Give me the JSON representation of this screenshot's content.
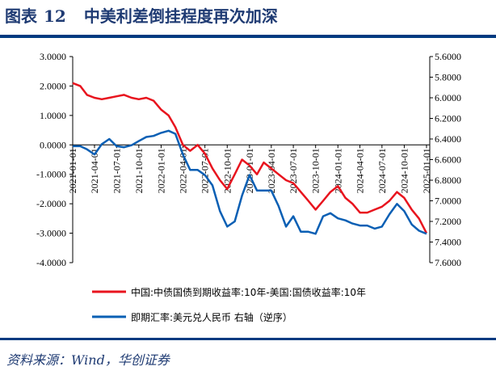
{
  "header": {
    "label": "图表",
    "number": "12",
    "title": "中美利差倒挂程度再次加深"
  },
  "source": "资料来源：Wind，华创证券",
  "chart_data": {
    "type": "line",
    "title": "中美利差倒挂程度再次加深",
    "x_ticks": [
      "2021-01-01",
      "2021-04-01",
      "2021-07-01",
      "2021-10-01",
      "2022-01-01",
      "2022-04-01",
      "2022-07-01",
      "2022-10-01",
      "2023-01-01",
      "2023-04-01",
      "2023-07-01",
      "2023-10-01",
      "2024-01-01",
      "2024-04-01",
      "2024-07-01",
      "2024-10-01",
      "2025-01-01"
    ],
    "y_left": {
      "range": [
        -4,
        3
      ],
      "ticks": [
        "3.0000",
        "2.0000",
        "1.0000",
        "0.0000",
        "-1.0000",
        "-2.0000",
        "-3.0000",
        "-4.0000"
      ]
    },
    "y_right": {
      "range": [
        5.6,
        7.6
      ],
      "reversed": true,
      "ticks": [
        "5.6000",
        "5.8000",
        "6.0000",
        "6.2000",
        "6.4000",
        "6.6000",
        "6.8000",
        "7.0000",
        "7.2000",
        "7.4000",
        "7.6000"
      ]
    },
    "x": [
      "2021-01",
      "2021-02",
      "2021-03",
      "2021-04",
      "2021-05",
      "2021-06",
      "2021-07",
      "2021-08",
      "2021-09",
      "2021-10",
      "2021-11",
      "2021-12",
      "2022-01",
      "2022-02",
      "2022-03",
      "2022-04",
      "2022-05",
      "2022-06",
      "2022-07",
      "2022-08",
      "2022-09",
      "2022-10",
      "2022-11",
      "2022-12",
      "2023-01",
      "2023-02",
      "2023-03",
      "2023-04",
      "2023-05",
      "2023-06",
      "2023-07",
      "2023-08",
      "2023-09",
      "2023-10",
      "2023-11",
      "2023-12",
      "2024-01",
      "2024-02",
      "2024-03",
      "2024-04",
      "2024-05",
      "2024-06",
      "2024-07",
      "2024-08",
      "2024-09",
      "2024-10",
      "2024-11",
      "2024-12",
      "2025-01"
    ],
    "series": [
      {
        "name": "中国:中债国债到期收益率:10年-美国:国债收益率:10年",
        "axis": "left",
        "color": "#e8141e",
        "values": [
          2.1,
          2.0,
          1.7,
          1.6,
          1.55,
          1.6,
          1.65,
          1.7,
          1.6,
          1.55,
          1.6,
          1.5,
          1.2,
          1.0,
          0.6,
          0.0,
          -0.2,
          0.0,
          -0.3,
          -0.8,
          -1.2,
          -1.5,
          -1.0,
          -0.5,
          -0.7,
          -1.0,
          -0.6,
          -0.8,
          -1.0,
          -1.2,
          -1.3,
          -1.6,
          -1.9,
          -2.2,
          -1.9,
          -1.6,
          -1.4,
          -1.8,
          -2.0,
          -2.3,
          -2.3,
          -2.2,
          -2.1,
          -1.9,
          -1.6,
          -1.8,
          -2.2,
          -2.5,
          -3.0
        ]
      },
      {
        "name": "即期汇率:美元兑人民币 右轴（逆序）",
        "axis": "right",
        "color": "#0a5fb4",
        "values": [
          6.47,
          6.47,
          6.5,
          6.55,
          6.45,
          6.4,
          6.47,
          6.48,
          6.46,
          6.42,
          6.38,
          6.37,
          6.34,
          6.32,
          6.35,
          6.55,
          6.7,
          6.7,
          6.75,
          6.85,
          7.1,
          7.25,
          7.2,
          6.95,
          6.75,
          6.9,
          6.9,
          6.9,
          7.05,
          7.25,
          7.15,
          7.3,
          7.3,
          7.32,
          7.15,
          7.12,
          7.17,
          7.19,
          7.22,
          7.24,
          7.24,
          7.27,
          7.25,
          7.13,
          7.03,
          7.1,
          7.23,
          7.29,
          7.32
        ]
      }
    ],
    "legend": "bottom",
    "grid": false
  }
}
